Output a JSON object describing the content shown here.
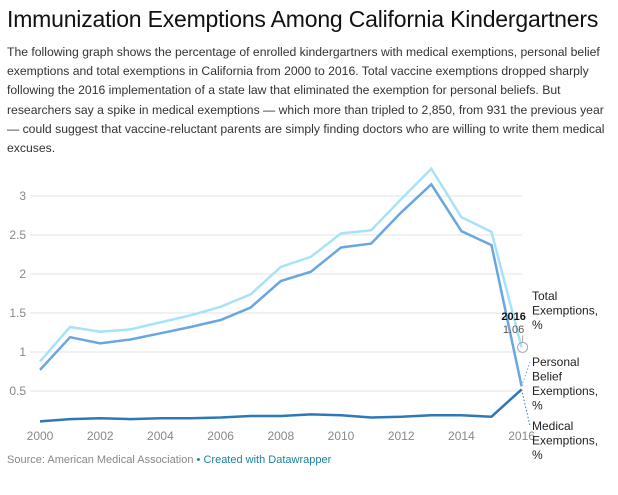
{
  "title": "Immunization Exemptions Among California Kindergartners",
  "intro": "The following graph shows the percentage of enrolled kindergartners with medical exemptions, personal belief exemptions and total exemptions in California from 2000 to 2016. Total vaccine exemptions dropped sharply following the 2016 implementation of a state law that eliminated the exemption for personal beliefs. But researchers say a spike in medical exemptions — which more than tripled to 2,850, from 931 the previous year — could suggest that vaccine-reluctant parents are simply finding doctors who are willing to write them medical excuses.",
  "footer": {
    "source": "Source: American Medical Association",
    "separator": "•",
    "credit": "Created with Datawrapper"
  },
  "chart_data": {
    "type": "line",
    "title": "Immunization Exemptions Among California Kindergartners",
    "xlabel": "",
    "ylabel": "",
    "x": [
      2000,
      2001,
      2002,
      2003,
      2004,
      2005,
      2006,
      2007,
      2008,
      2009,
      2010,
      2011,
      2012,
      2013,
      2014,
      2015,
      2016
    ],
    "x_ticks": [
      "2000",
      "2002",
      "2004",
      "2006",
      "2008",
      "2010",
      "2012",
      "2014",
      "2016"
    ],
    "y_ticks": [
      "0.5",
      "1",
      "1.5",
      "2",
      "2.5",
      "3"
    ],
    "ylim": [
      0,
      3.4
    ],
    "xlim": [
      2000,
      2016
    ],
    "grid": true,
    "legend": "direct-labels-right",
    "series": [
      {
        "name": "Total Exemptions, %",
        "label_lines": [
          "Total",
          "Exemptions,",
          "%"
        ],
        "color": "#a6e3f7",
        "values": [
          0.88,
          1.32,
          1.26,
          1.29,
          1.38,
          1.47,
          1.58,
          1.74,
          2.09,
          2.22,
          2.52,
          2.56,
          2.96,
          3.35,
          2.73,
          2.54,
          1.06
        ]
      },
      {
        "name": "Personal Belief Exemptions, %",
        "label_lines": [
          "Personal",
          "Belief",
          "Exemptions,",
          "%"
        ],
        "color": "#6aa6e2",
        "values": [
          0.77,
          1.19,
          1.11,
          1.16,
          1.24,
          1.32,
          1.41,
          1.57,
          1.91,
          2.03,
          2.34,
          2.39,
          2.79,
          3.15,
          2.55,
          2.37,
          0.56
        ]
      },
      {
        "name": "Medical Exemptions, %",
        "label_lines": [
          "Medical",
          "Exemptions,",
          "%"
        ],
        "color": "#2f78b8",
        "values": [
          0.11,
          0.14,
          0.15,
          0.14,
          0.15,
          0.15,
          0.16,
          0.18,
          0.18,
          0.2,
          0.19,
          0.16,
          0.17,
          0.19,
          0.19,
          0.17,
          0.52
        ]
      }
    ],
    "annotation": {
      "year": "2016",
      "value": "1.06",
      "series": "Total Exemptions, %"
    }
  }
}
